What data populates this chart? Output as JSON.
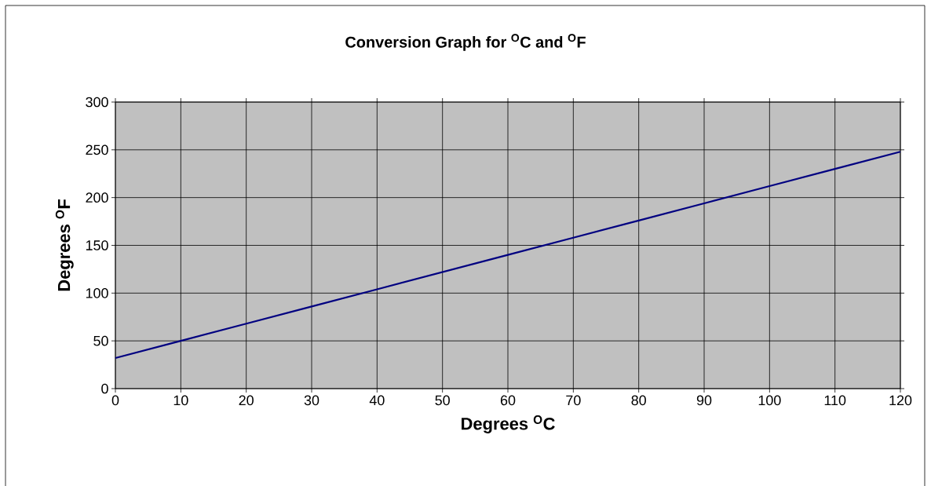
{
  "chart_data": {
    "type": "line",
    "title": "Conversion Graph for $^{O}$C and $^{O}$F",
    "xlabel": "Degrees $^{O}$C",
    "ylabel": "Degrees $^{O}$F",
    "x": [
      0,
      10,
      20,
      30,
      40,
      50,
      60,
      70,
      80,
      90,
      100,
      110,
      120
    ],
    "series": [
      {
        "color": "#000080",
        "values": [
          32,
          50,
          68,
          86,
          104,
          122,
          140,
          158,
          176,
          194,
          212,
          230,
          248
        ]
      }
    ],
    "xlim": [
      0,
      120
    ],
    "xticks": [
      0,
      10,
      20,
      30,
      40,
      50,
      60,
      70,
      80,
      90,
      100,
      110,
      120
    ],
    "ylim": [
      0,
      300
    ],
    "yticks": [
      0,
      50,
      100,
      150,
      200,
      250,
      300
    ],
    "grid": true,
    "marker": "none",
    "line_style": "solid"
  }
}
